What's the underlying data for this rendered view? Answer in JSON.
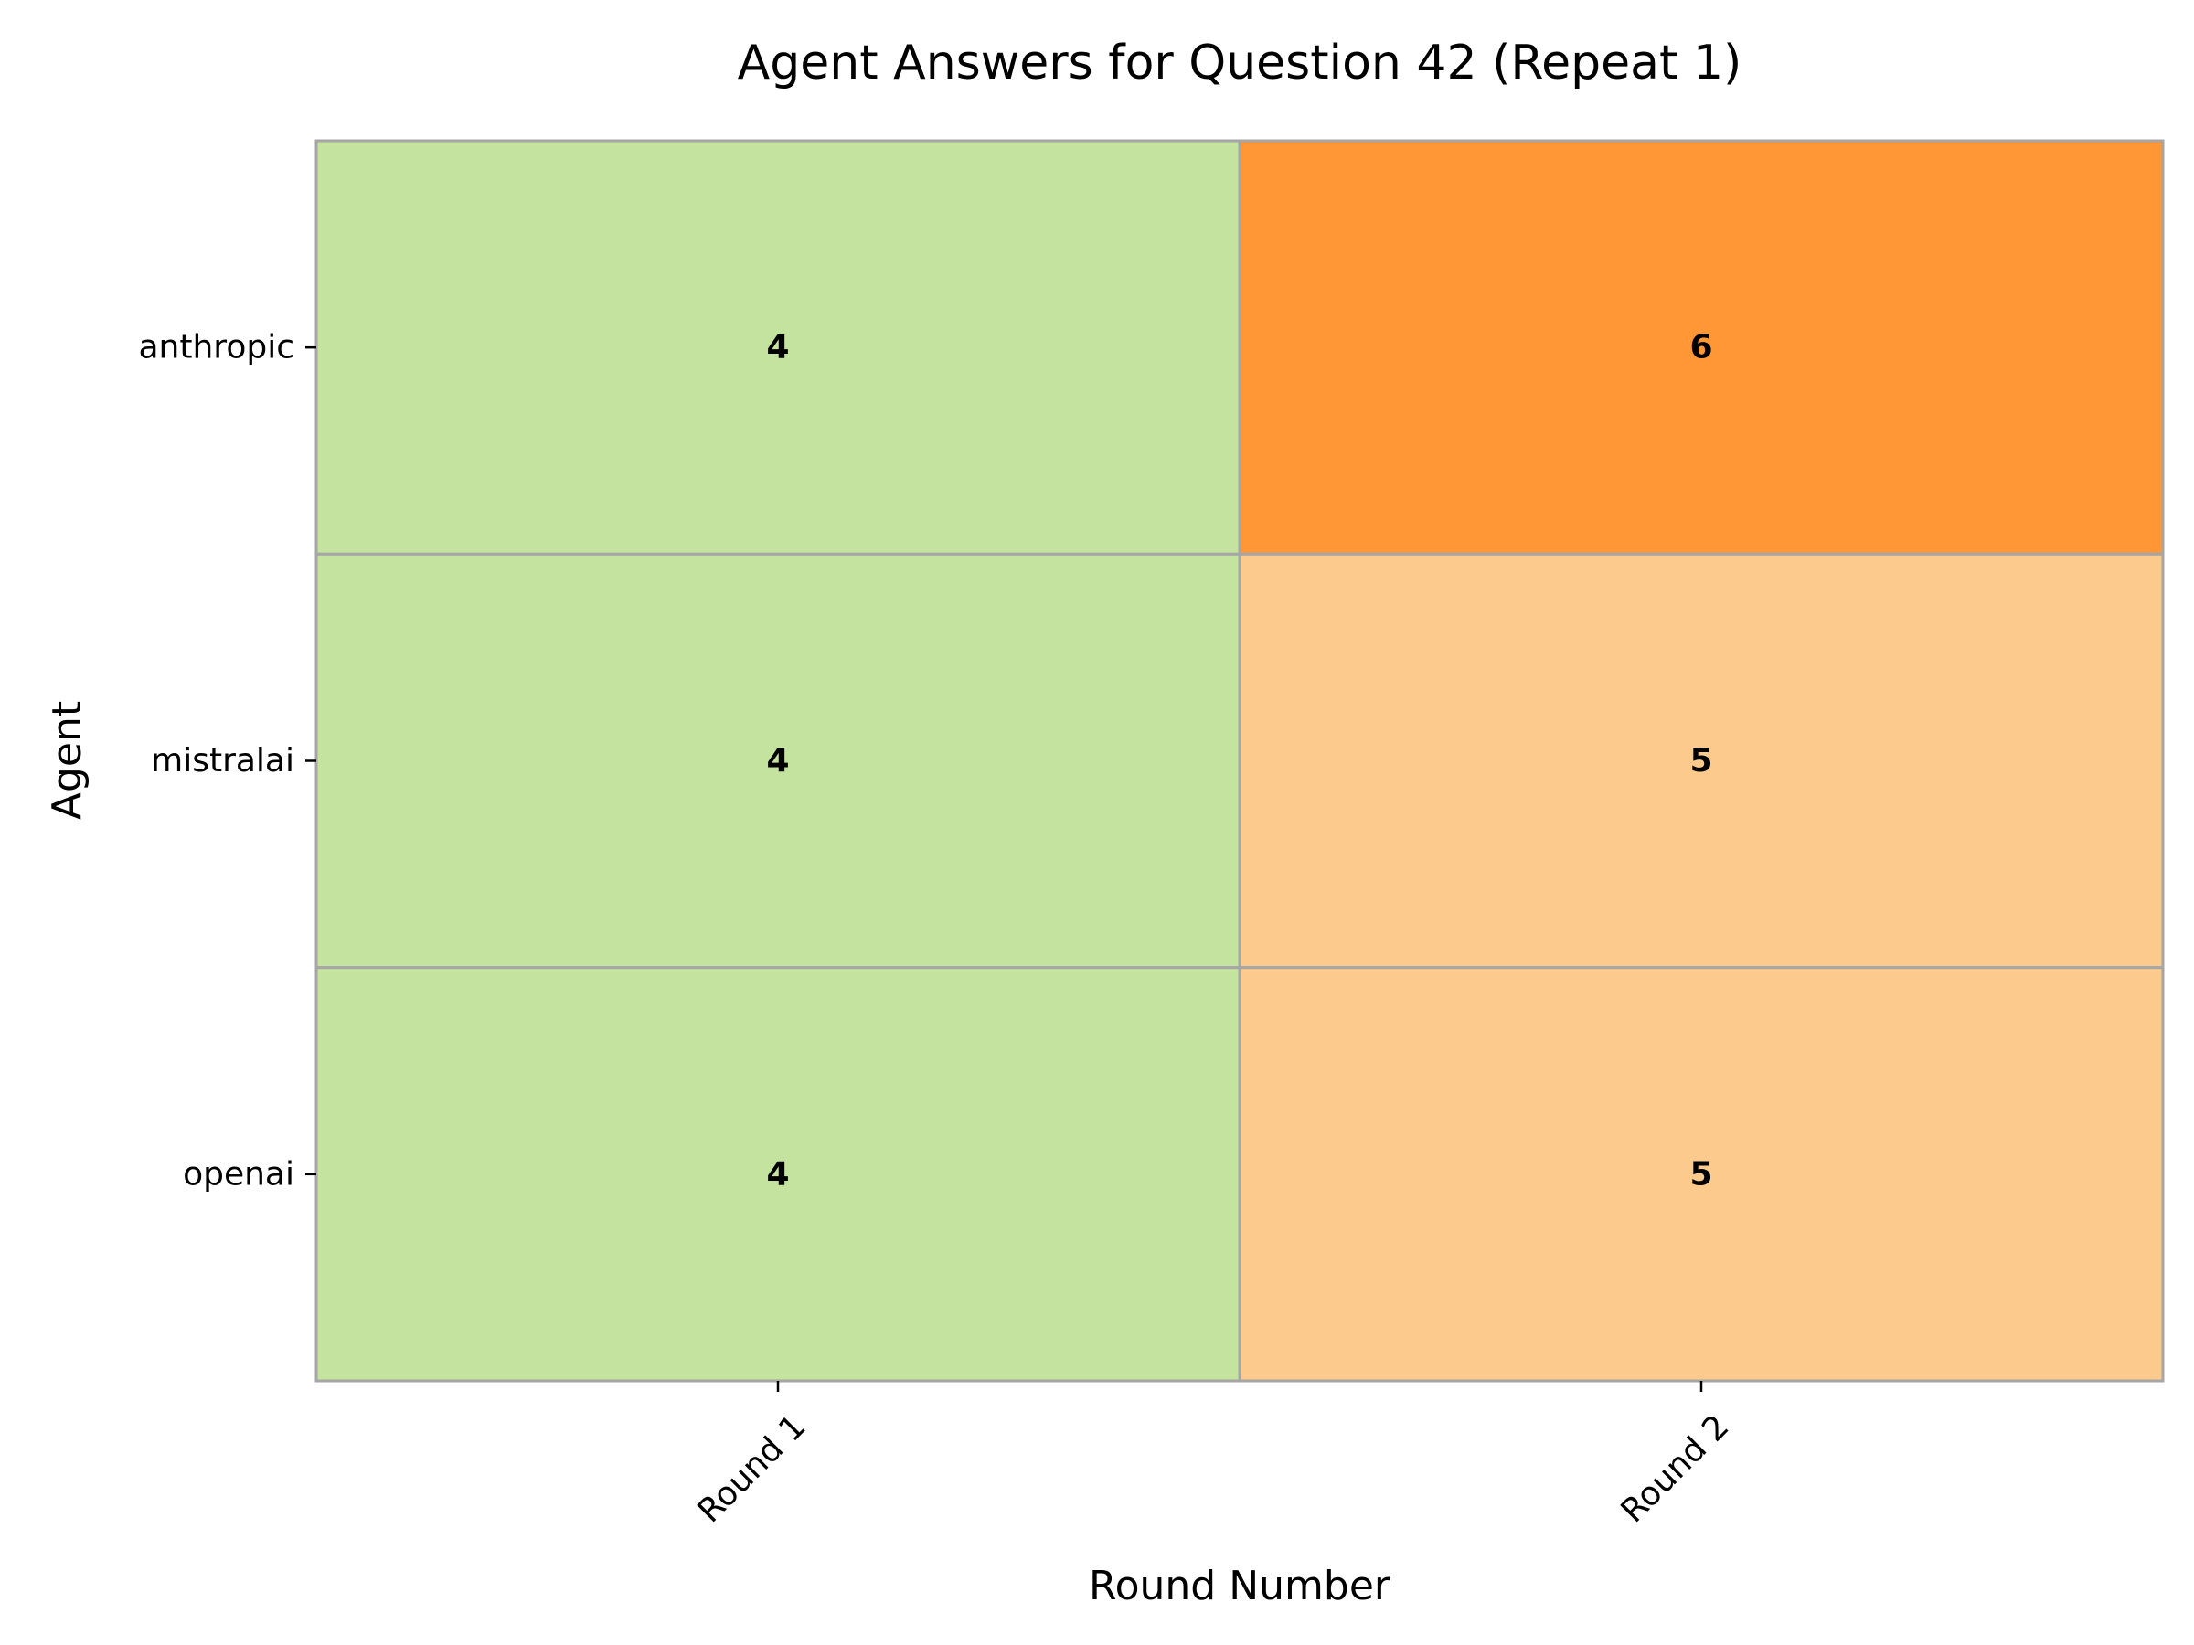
{
  "chart_data": {
    "type": "heatmap",
    "title": "Agent Answers for Question 42 (Repeat 1)",
    "xlabel": "Round Number",
    "ylabel": "Agent",
    "x_categories": [
      "Round 1",
      "Round 2"
    ],
    "y_categories": [
      "anthropic",
      "mistralai",
      "openai"
    ],
    "values": [
      [
        4,
        6
      ],
      [
        4,
        5
      ],
      [
        4,
        5
      ]
    ],
    "colors": {
      "4": "#c3e39f",
      "5": "#fdca8d",
      "6": "#ff9736"
    },
    "grid_color": "#a6a6a6",
    "grid": true,
    "legend": "none"
  }
}
